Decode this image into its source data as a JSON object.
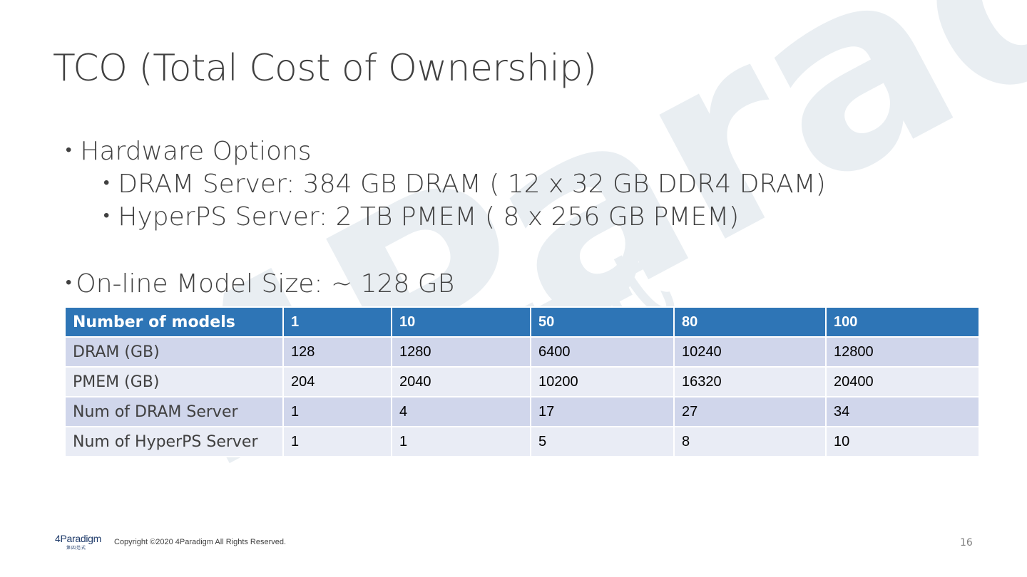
{
  "slide": {
    "title": "TCO (Total Cost of Ownership)",
    "page_number": "16"
  },
  "bullets": {
    "hardware_heading": "Hardware Options",
    "dram_server": "DRAM Server: 384 GB DRAM ( 12 x 32 GB DDR4 DRAM)",
    "hyperps_server": "HyperPS Server: 2 TB PMEM ( 8 x 256 GB PMEM)",
    "model_size": "On-line Model Size: ~ 128 GB",
    "bullet_glyph": "•"
  },
  "table": {
    "headers": [
      "Number of models",
      "1",
      "10",
      "50",
      "80",
      "100"
    ],
    "rows": [
      {
        "label": "DRAM (GB)",
        "values": [
          "128",
          "1280",
          "6400",
          "10240",
          "12800"
        ]
      },
      {
        "label": "PMEM (GB)",
        "values": [
          "204",
          "2040",
          "10200",
          "16320",
          "20400"
        ]
      },
      {
        "label": "Num of DRAM Server",
        "values": [
          "1",
          "4",
          "17",
          "27",
          "34"
        ]
      },
      {
        "label": "Num of HyperPS Server",
        "values": [
          "1",
          "1",
          "5",
          "8",
          "10"
        ]
      }
    ],
    "colors": {
      "header": "#2e75b6",
      "row_dark": "#d0d6eb",
      "row_light": "#e9ecf5"
    }
  },
  "watermark": {
    "text": "4Paradigm",
    "subtext": "第四范式",
    "color": "#e6ecf1"
  },
  "footer": {
    "logo_text": "4Paradigm",
    "logo_subtext": "第四范式",
    "copyright": "Copyright ©2020 4Paradigm All Rights Reserved."
  }
}
